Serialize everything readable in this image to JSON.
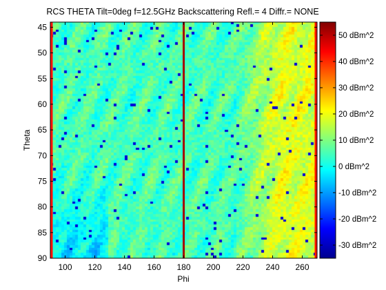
{
  "chart_data": {
    "type": "heatmap",
    "title": "RCS THETA Tilt=0deg f=12.5GHz Backscattering Refl.= 4 Diffr.= NONE",
    "xlabel": "Phi",
    "ylabel": "Theta",
    "xlim": [
      90,
      270
    ],
    "ylim": [
      44,
      90
    ],
    "y_reversed": true,
    "x_ticks": [
      100,
      120,
      140,
      160,
      180,
      200,
      220,
      240,
      260
    ],
    "y_ticks": [
      45,
      50,
      55,
      60,
      65,
      70,
      75,
      80,
      85,
      90
    ],
    "colorbar": {
      "colormap": "jet",
      "clim": [
        -35,
        55
      ],
      "unit": "dBm^2",
      "ticks": [
        -30,
        -20,
        -10,
        0,
        10,
        20,
        30,
        40,
        50
      ],
      "tick_labels": [
        "-30 dBm^2",
        "-20 dBm^2",
        "-10 dBm^2",
        "0 dBm^2",
        "10 dBm^2",
        "20 dBm^2",
        "30 dBm^2",
        "40 dBm^2",
        "50 dBm^2"
      ]
    },
    "peak_lines": [
      {
        "phi": 90,
        "value_dbsm": 42
      },
      {
        "phi": 180,
        "value_dbsm": 52
      },
      {
        "phi": 270,
        "value_dbsm": 42
      }
    ],
    "grid": false,
    "value_summary": {
      "background_dbsm": 5,
      "left_region_low_dbsm": -20,
      "right_region_high_dbsm": 20
    }
  }
}
